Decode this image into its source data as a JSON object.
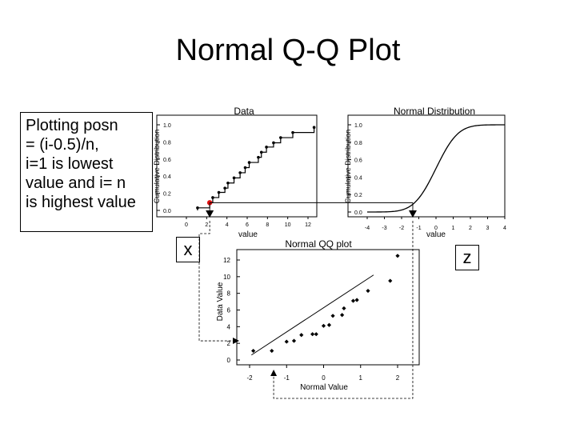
{
  "slide": {
    "title": "Normal Q-Q Plot",
    "note_lines": [
      "Plotting posn",
      "= (i-0.5)/n,",
      "i=1 is lowest",
      "value and i= n",
      "is highest value"
    ],
    "x_box": "x",
    "z_box": "z"
  },
  "chart_data": [
    {
      "type": "line",
      "title": "Data",
      "xlabel": "value",
      "ylabel": "Cumulative Distribution",
      "x_ticks": [
        0,
        2,
        4,
        6,
        8,
        10,
        12
      ],
      "y_ticks": [
        "0.0",
        "0.2",
        "0.4",
        "0.6",
        "0.8",
        "1.0"
      ],
      "xlim": [
        0,
        12
      ],
      "ylim": [
        0,
        1
      ],
      "x": [
        1.1,
        2.3,
        2.6,
        3.2,
        3.8,
        4.1,
        4.7,
        5.3,
        5.8,
        6.2,
        7.1,
        7.4,
        7.9,
        8.6,
        9.3,
        10.5,
        12.6
      ],
      "y": [
        0.03,
        0.09,
        0.15,
        0.21,
        0.26,
        0.32,
        0.38,
        0.44,
        0.5,
        0.56,
        0.62,
        0.68,
        0.74,
        0.79,
        0.85,
        0.91,
        0.97
      ],
      "highlight": {
        "x": 2.3,
        "y": 0.09,
        "color": "#e01010"
      }
    },
    {
      "type": "line",
      "title": "Normal Distribution",
      "xlabel": "value",
      "ylabel": "Cumulative Distribution",
      "x_ticks": [
        -4,
        -3,
        -2,
        -1,
        0,
        1,
        2,
        3,
        4
      ],
      "y_ticks": [
        "0.0",
        "0.2",
        "0.4",
        "0.6",
        "0.8",
        "1.0"
      ],
      "xlim": [
        -4,
        4
      ],
      "ylim": [
        0,
        1
      ],
      "curve": "normal-cdf",
      "marker_x": -1.35
    },
    {
      "type": "scatter",
      "title": "Normal QQ plot",
      "xlabel": "Normal Value",
      "ylabel": "Data Value",
      "x_ticks": [
        "-2",
        "-1",
        "0",
        "1",
        "2"
      ],
      "y_ticks": [
        "0",
        "2",
        "4",
        "6",
        "8",
        "10",
        "12"
      ],
      "xlim": [
        -2,
        2
      ],
      "ylim": [
        0,
        12
      ],
      "x": [
        -1.9,
        -1.4,
        -1.0,
        -0.8,
        -0.6,
        -0.3,
        -0.2,
        0.0,
        0.15,
        0.25,
        0.5,
        0.55,
        0.8,
        0.9,
        1.2,
        1.8,
        2.0
      ],
      "y": [
        1.1,
        1.1,
        2.2,
        2.3,
        3.0,
        3.1,
        3.1,
        4.1,
        4.2,
        5.3,
        5.4,
        6.2,
        7.1,
        7.2,
        8.3,
        9.5,
        12.5
      ],
      "fit_line": {
        "x": [
          -1.95,
          1.35
        ],
        "y": [
          0.6,
          10.2
        ]
      }
    }
  ]
}
